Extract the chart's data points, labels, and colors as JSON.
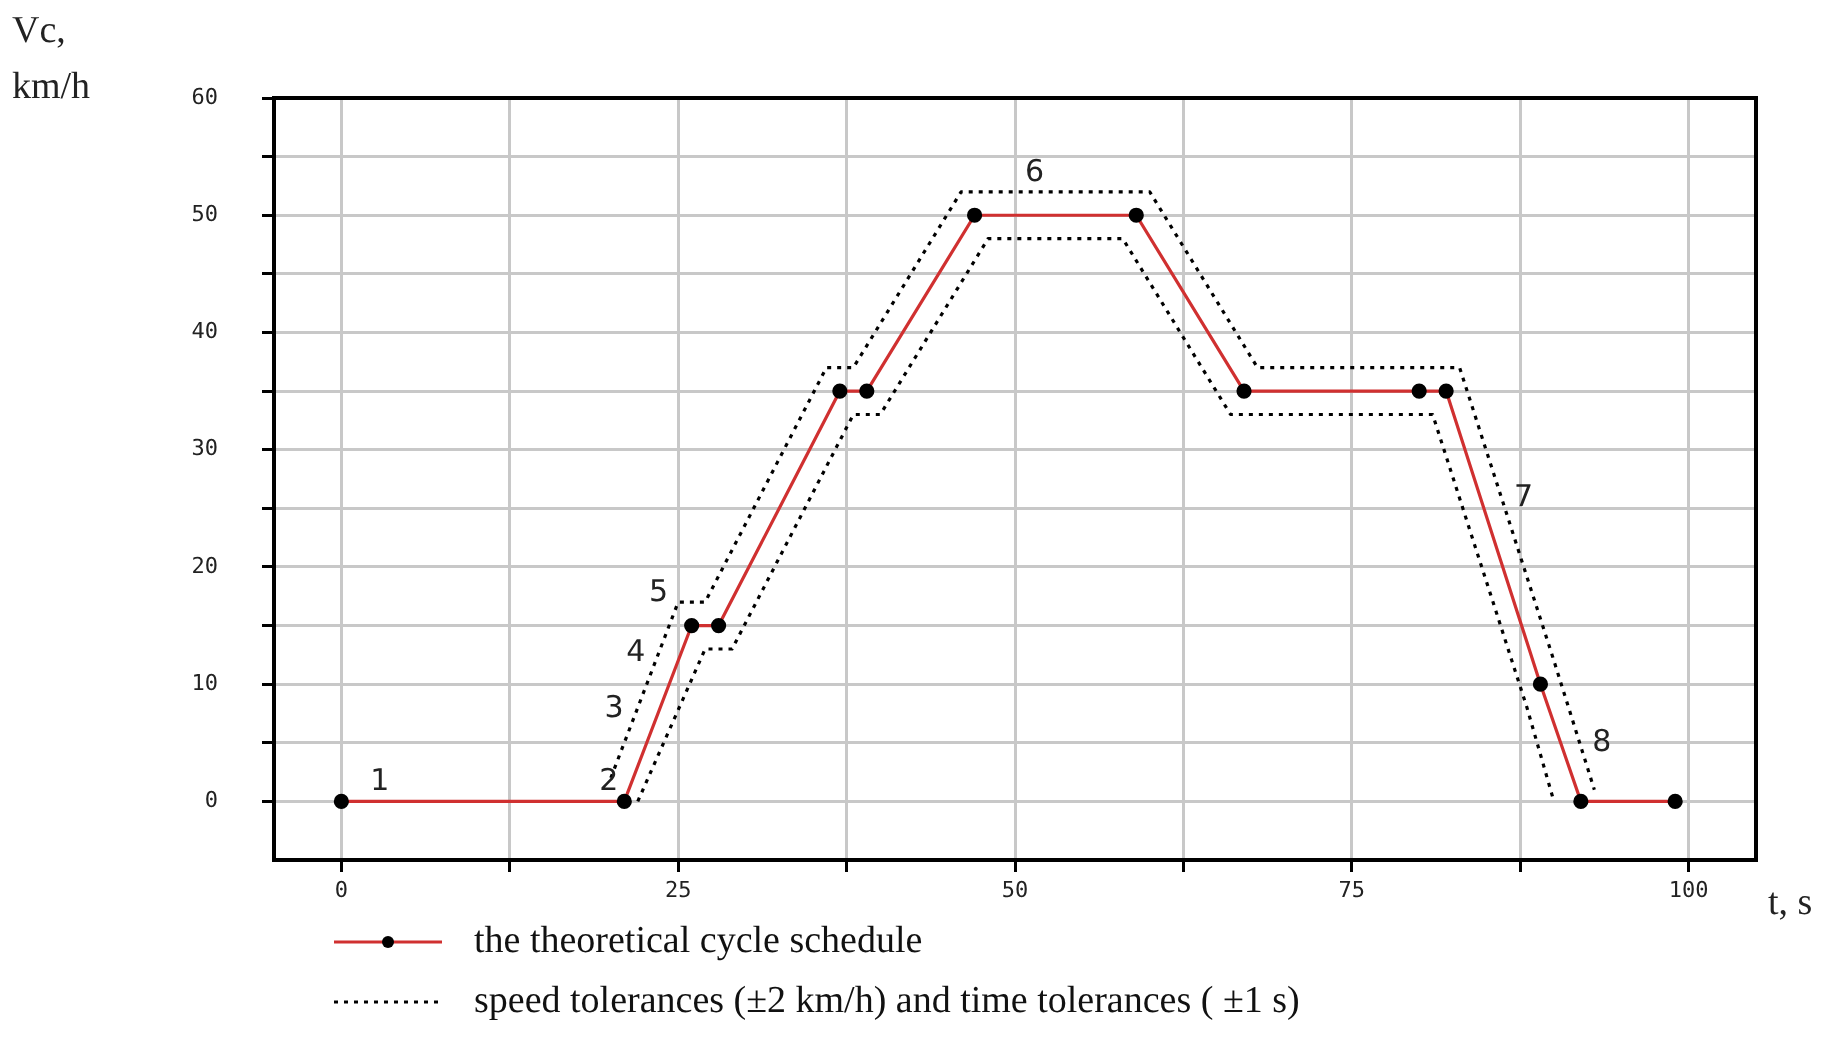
{
  "chart_data": {
    "type": "line",
    "xlabel": "t, s",
    "ylabel": "Vc,\nkm/h",
    "xlim": [
      -5,
      105
    ],
    "ylim": [
      -5,
      60
    ],
    "xticks": [
      0,
      {
        "value": 12.5,
        "label": null
      },
      25,
      {
        "value": 37.5,
        "label": null
      },
      50,
      {
        "value": 62.5,
        "label": null
      },
      75,
      {
        "value": 87.5,
        "label": null
      },
      100
    ],
    "yticks": [
      0,
      {
        "value": 5,
        "label": null
      },
      10,
      {
        "value": 15,
        "label": null
      },
      20,
      {
        "value": 25,
        "label": null
      },
      30,
      {
        "value": 35,
        "label": null
      },
      40,
      {
        "value": 45,
        "label": null
      },
      50,
      {
        "value": 55,
        "label": null
      },
      60
    ],
    "grid": true,
    "legend": "bottom",
    "series": [
      {
        "name": "the theoretical cycle schedule",
        "color": "#d03030",
        "colors": [
          "#000000",
          "#000000",
          "#000000",
          "#000000",
          "#000000",
          "#000000",
          "#000000",
          "#000000",
          "#000000",
          "#000000",
          "#000000",
          "#000000",
          "#000000",
          "#000000"
        ],
        "marker": "circle",
        "line_style": "solid",
        "x": [
          0,
          21,
          26,
          28,
          37,
          39,
          47,
          59,
          67,
          80,
          82,
          89,
          92,
          99
        ],
        "values": [
          0,
          0,
          15,
          15,
          35,
          35,
          50,
          50,
          35,
          35,
          35,
          10,
          0,
          0
        ]
      },
      {
        "name": "speed tolerances (±2 km/h) and time tolerances ( ±1 s)",
        "color": "#000000",
        "marker": "none",
        "line_style": "dotted",
        "x": [
          20,
          25,
          27,
          36,
          38,
          46,
          60,
          68,
          83,
          90,
          93
        ],
        "values": [
          2,
          17,
          17,
          37,
          37,
          52,
          52,
          37,
          37,
          12,
          1
        ]
      },
      {
        "color": "#000000",
        "marker": "none",
        "line_style": "dotted",
        "x": [
          22,
          27,
          29,
          38,
          40,
          48,
          58,
          66,
          81,
          88,
          90
        ],
        "values": [
          0,
          13,
          13,
          33,
          33,
          48,
          48,
          33,
          33,
          8,
          0
        ]
      }
    ],
    "annotations": [
      {
        "text": "1",
        "x": 4,
        "y": 0
      },
      {
        "text": "2",
        "x": 21,
        "y": 0
      },
      {
        "text": "3",
        "x": 21.4,
        "y": 6.2
      },
      {
        "text": "4",
        "x": 23,
        "y": 11
      },
      {
        "text": "5",
        "x": 24.7,
        "y": 16.1
      },
      {
        "text": "6",
        "x": 50.3,
        "y": 52
      },
      {
        "text": "7",
        "x": 86.6,
        "y": 24.2
      },
      {
        "text": "8",
        "x": 92.4,
        "y": 3.3
      }
    ]
  }
}
